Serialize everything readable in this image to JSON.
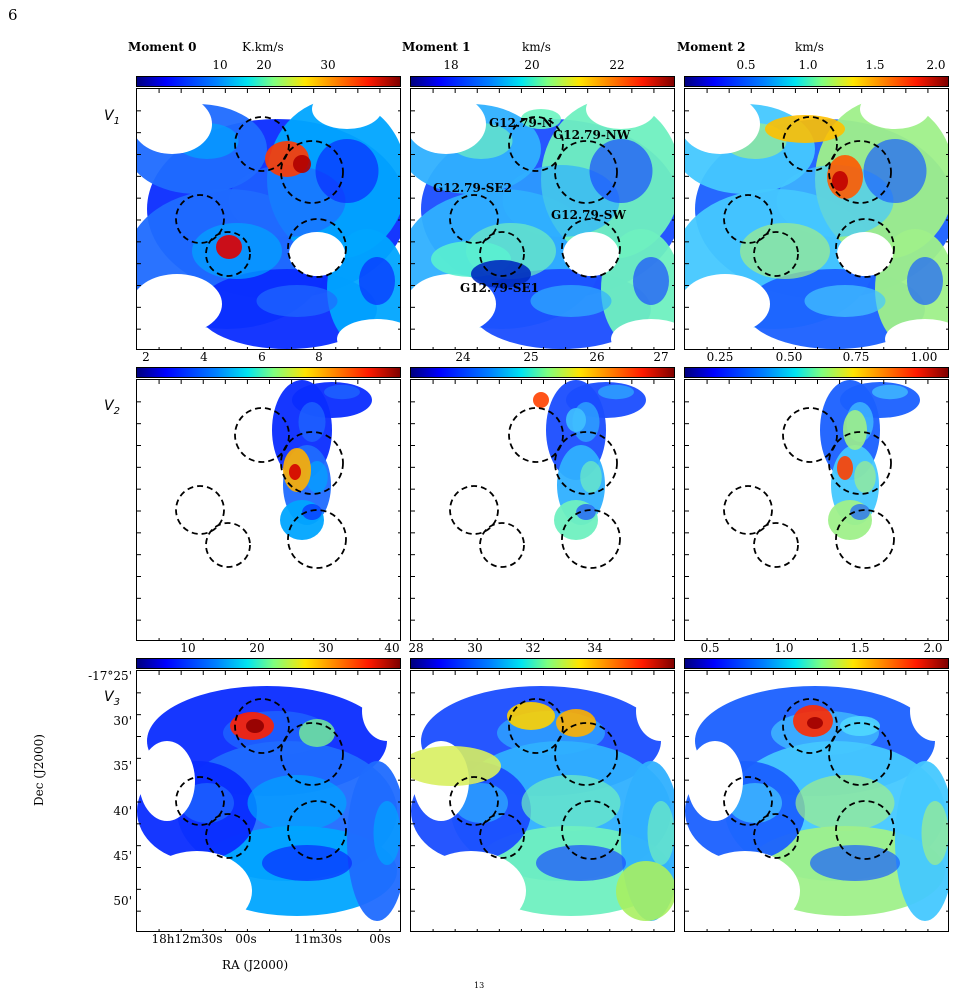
{
  "page_number": "6",
  "footer_fragment": "13",
  "headers": [
    {
      "title": "Moment 0",
      "unit": "K.km/s"
    },
    {
      "title": "Moment 1",
      "unit": "km/s"
    },
    {
      "title": "Moment 2",
      "unit": "km/s"
    }
  ],
  "rows": [
    {
      "label": "V",
      "sub": "1"
    },
    {
      "label": "V",
      "sub": "2"
    },
    {
      "label": "V",
      "sub": "3"
    }
  ],
  "colorbars": [
    [
      {
        "t": "10"
      },
      {
        "t": "20"
      },
      {
        "t": "30"
      }
    ],
    [
      {
        "t": "18"
      },
      {
        "t": "20"
      },
      {
        "t": "22"
      }
    ],
    [
      {
        "t": "0.5"
      },
      {
        "t": "1.0"
      },
      {
        "t": "1.5"
      },
      {
        "t": "2.0"
      }
    ],
    [
      {
        "t": "2"
      },
      {
        "t": "4"
      },
      {
        "t": "6"
      },
      {
        "t": "8"
      }
    ],
    [
      {
        "t": "24"
      },
      {
        "t": "25"
      },
      {
        "t": "26"
      },
      {
        "t": "27"
      }
    ],
    [
      {
        "t": "0.25"
      },
      {
        "t": "0.50"
      },
      {
        "t": "0.75"
      },
      {
        "t": "1.00"
      }
    ],
    [
      {
        "t": "10"
      },
      {
        "t": "20"
      },
      {
        "t": "30"
      },
      {
        "t": "40"
      }
    ],
    [
      {
        "t": "28"
      },
      {
        "t": "30"
      },
      {
        "t": "32"
      },
      {
        "t": "34"
      }
    ],
    [
      {
        "t": "0.5"
      },
      {
        "t": "1.0"
      },
      {
        "t": "1.5"
      },
      {
        "t": "2.0"
      }
    ]
  ],
  "sources": [
    "G12.79-N",
    "G12.79-NW",
    "G12.79-SE2",
    "G12.79-SW",
    "G12.79-SE1"
  ],
  "dec_axis": {
    "label": "Dec (J2000)",
    "ticks": [
      "-17°25'",
      "30'",
      "35'",
      "40'",
      "45'",
      "50'"
    ]
  },
  "ra_axis": {
    "label": "RA (J2000)",
    "ticks": [
      "18h12m30s",
      "00s",
      "11m30s",
      "00s"
    ]
  },
  "colors": {
    "jet_low": "#00007f",
    "jet_mid": "#7fff7f",
    "jet_high": "#7f0000"
  }
}
